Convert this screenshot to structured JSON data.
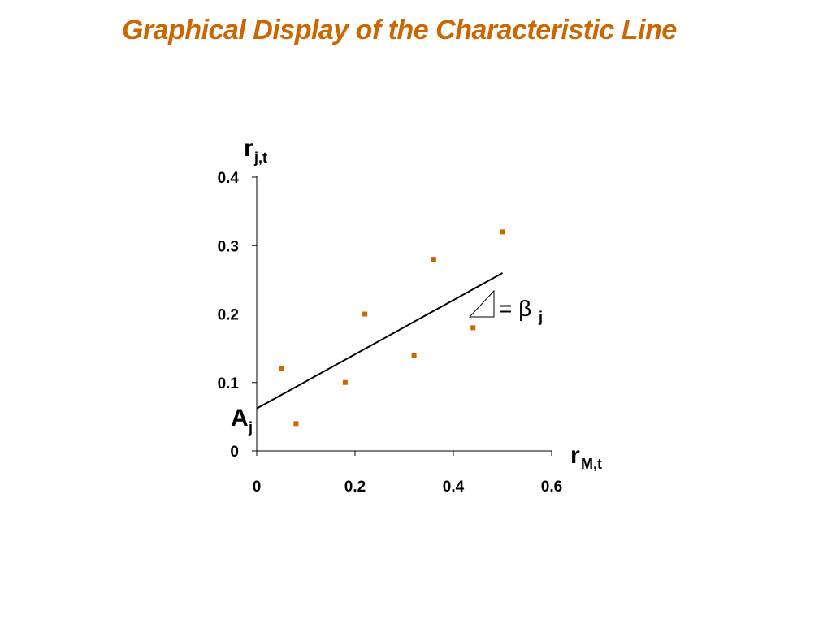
{
  "chart_data": {
    "type": "scatter",
    "title": "Graphical Display of the Characteristic Line",
    "x": [
      0.05,
      0.08,
      0.18,
      0.22,
      0.32,
      0.36,
      0.44,
      0.5
    ],
    "values": [
      0.12,
      0.04,
      0.1,
      0.2,
      0.14,
      0.28,
      0.18,
      0.32
    ],
    "color": "#cc6600",
    "line": {
      "x": [
        0,
        0.5
      ],
      "values": [
        0.062,
        0.26
      ],
      "color": "#000000"
    },
    "xlim": [
      0,
      0.6
    ],
    "xticks": [
      0,
      0.2,
      0.4,
      0.6
    ],
    "ylim": [
      0,
      0.4
    ],
    "yticks": [
      0,
      0.1,
      0.2,
      0.3,
      0.4
    ],
    "y_label": {
      "main": "r",
      "sub": "j,t"
    },
    "x_label": {
      "main": "r",
      "sub": "M,t"
    },
    "intercept_label": {
      "main": "A",
      "sub": "j"
    },
    "slope_label": {
      "main": "= β",
      "sub": "j"
    }
  }
}
